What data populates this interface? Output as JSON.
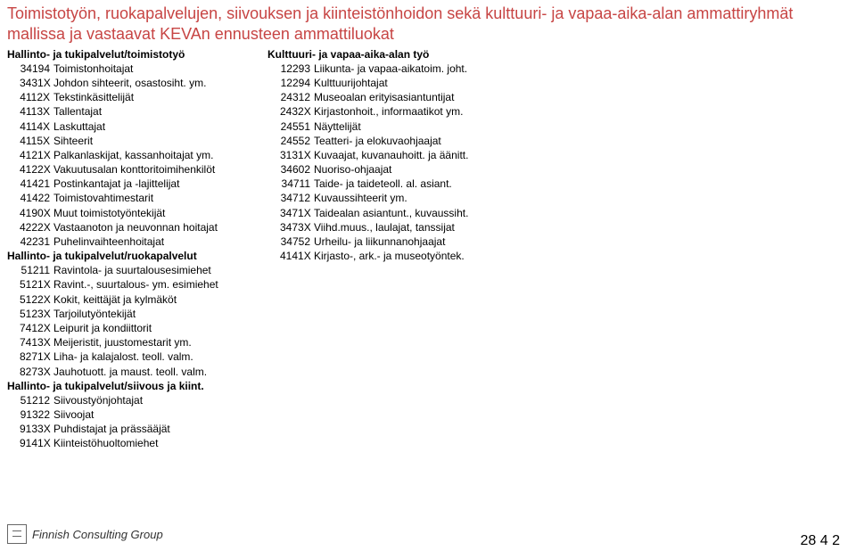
{
  "title": "Toimistotyön, ruokapalvelujen, siivouksen ja kiinteistönhoidon sekä kulttuuri- ja vapaa-aika-alan ammattiryhmät mallissa ja vastaavat KEVAn ennusteen ammattiluokat",
  "colors": {
    "title": "#c74544",
    "text": "#000000",
    "background": "#ffffff"
  },
  "left": {
    "sections": [
      {
        "header": "Hallinto- ja tukipalvelut/toimistotyö",
        "items": [
          {
            "code": "34194",
            "label": "Toimistonhoitajat"
          },
          {
            "code": "3431X",
            "label": "Johdon sihteerit, osastosiht. ym."
          },
          {
            "code": "4112X",
            "label": "Tekstinkäsittelijät"
          },
          {
            "code": "4113X",
            "label": "Tallentajat"
          },
          {
            "code": "4114X",
            "label": "Laskuttajat"
          },
          {
            "code": "4115X",
            "label": "Sihteerit"
          },
          {
            "code": "4121X",
            "label": "Palkanlaskijat, kassanhoitajat ym."
          },
          {
            "code": "4122X",
            "label": "Vakuutusalan konttoritoimihenkilöt"
          },
          {
            "code": "41421",
            "label": "Postinkantajat ja -lajittelijat"
          },
          {
            "code": "41422",
            "label": "Toimistovahtimestarit"
          },
          {
            "code": "4190X",
            "label": "Muut toimistotyöntekijät"
          },
          {
            "code": "4222X",
            "label": "Vastaanoton ja neuvonnan hoitajat"
          },
          {
            "code": "42231",
            "label": "Puhelinvaihteenhoitajat"
          }
        ]
      },
      {
        "header": "Hallinto- ja tukipalvelut/ruokapalvelut",
        "items": [
          {
            "code": "51211",
            "label": "Ravintola- ja suurtalousesimiehet"
          },
          {
            "code": "5121X",
            "label": "Ravint.-, suurtalous- ym. esimiehet"
          },
          {
            "code": "5122X",
            "label": "Kokit, keittäjät ja kylmäköt"
          },
          {
            "code": "5123X",
            "label": "Tarjoilutyöntekijät"
          },
          {
            "code": "7412X",
            "label": "Leipurit ja kondiittorit"
          },
          {
            "code": "7413X",
            "label": "Meijeristit, juustomestarit ym."
          },
          {
            "code": "8271X",
            "label": "Liha- ja kalajalost. teoll. valm."
          },
          {
            "code": "8273X",
            "label": "Jauhotuott. ja maust. teoll. valm."
          }
        ]
      },
      {
        "header": "Hallinto- ja tukipalvelut/siivous ja kiint.",
        "items": [
          {
            "code": "51212",
            "label": "Siivoustyönjohtajat"
          },
          {
            "code": "91322",
            "label": "Siivoojat"
          },
          {
            "code": "9133X",
            "label": "Puhdistajat ja prässääjät"
          },
          {
            "code": "9141X",
            "label": "Kiinteistöhuoltomiehet"
          }
        ]
      }
    ]
  },
  "right": {
    "sections": [
      {
        "header": "Kulttuuri- ja vapaa-aika-alan työ",
        "items": [
          {
            "code": "12293",
            "label": "Liikunta- ja vapaa-aikatoim. joht."
          },
          {
            "code": "12294",
            "label": "Kulttuurijohtajat"
          },
          {
            "code": "24312",
            "label": "Museoalan erityisasiantuntijat"
          },
          {
            "code": "2432X",
            "label": "Kirjastonhoit., informaatikot ym."
          },
          {
            "code": "24551",
            "label": "Näyttelijät"
          },
          {
            "code": "24552",
            "label": "Teatteri- ja elokuvaohjaajat"
          },
          {
            "code": "3131X",
            "label": "Kuvaajat, kuvanauhoitt. ja äänitt."
          },
          {
            "code": "34602",
            "label": "Nuoriso-ohjaajat"
          },
          {
            "code": "34711",
            "label": "Taide- ja taideteoll. al. asiant."
          },
          {
            "code": "34712",
            "label": "Kuvaussihteerit ym."
          },
          {
            "code": "3471X",
            "label": "Taidealan asiantunt., kuvaussiht."
          },
          {
            "code": "3473X",
            "label": "Viihd.muus., laulajat, tanssijat"
          },
          {
            "code": "34752",
            "label": "Urheilu- ja liikunnanohjaajat"
          },
          {
            "code": "4141X",
            "label": "Kirjasto-, ark.- ja museotyöntek."
          }
        ]
      }
    ]
  },
  "footer_logo_text": "Finnish Consulting Group",
  "corner": "28 4 2"
}
